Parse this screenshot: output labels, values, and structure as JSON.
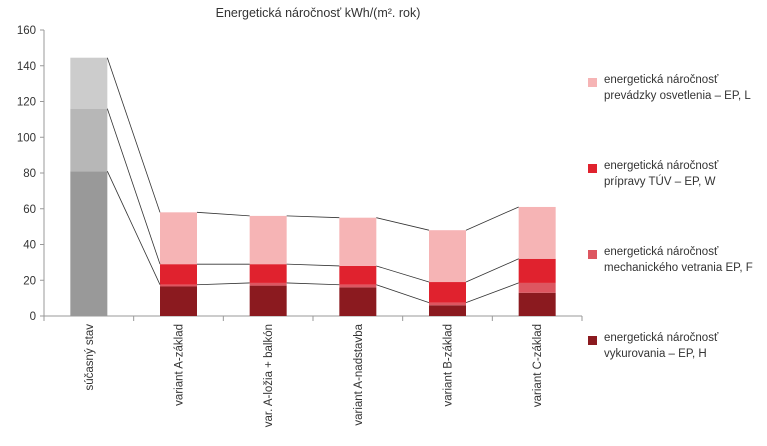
{
  "chart_data": {
    "type": "bar",
    "stacked": true,
    "title": "Energetická náročnosť kWh/(m². rok)",
    "categories": [
      "súčasný stav",
      "variant A-základ",
      "var. A-ložia + balkón",
      "variant A-nadstavba",
      "variant B-základ",
      "variant C-základ"
    ],
    "ylim": [
      0,
      160
    ],
    "yticks": [
      0,
      20,
      40,
      60,
      80,
      100,
      120,
      140,
      160
    ],
    "grid": false,
    "legend_position": "right",
    "connector_lines": true,
    "series": [
      {
        "name": "energetická náročnosť vykurovania – EP, H",
        "values": [
          81,
          16.5,
          17,
          16,
          6,
          13
        ],
        "color": "#8b1a1f"
      },
      {
        "name": "energetická náročnosť mechanického vetrania EP, F",
        "values": [
          0,
          1,
          1.5,
          1.5,
          1.5,
          5.5
        ],
        "color": "#dd5660"
      },
      {
        "name": "energetická náročnosť prípravy TÚV – EP, W",
        "values": [
          0,
          11.5,
          10.5,
          10.5,
          11.5,
          13.5
        ],
        "color": "#e0222e"
      },
      {
        "name": "energetická náročnosť prevádzky osvetlenia – EP, L",
        "values": [
          0,
          29,
          27,
          27,
          29,
          29
        ],
        "color": "#f6b4b5"
      }
    ],
    "current_state_series": {
      "category": "súčasný stav",
      "colors": [
        "#999999",
        "#b7b7b7",
        "#cccccc"
      ],
      "values": [
        81,
        35,
        28.5
      ]
    }
  },
  "legend": [
    {
      "line1": "energetická náročnosť",
      "line2": "prevádzky osvetlenia – EP, L",
      "color": "#f6b4b5"
    },
    {
      "line1": "energetická náročnosť",
      "line2": "prípravy TÚV – EP, W",
      "color": "#e0222e"
    },
    {
      "line1": "energetická náročnosť",
      "line2": "mechanického vetrania EP, F",
      "color": "#dd5660"
    },
    {
      "line1": "energetická náročnosť",
      "line2": "vykurovania – EP, H",
      "color": "#8b1a1f"
    }
  ]
}
